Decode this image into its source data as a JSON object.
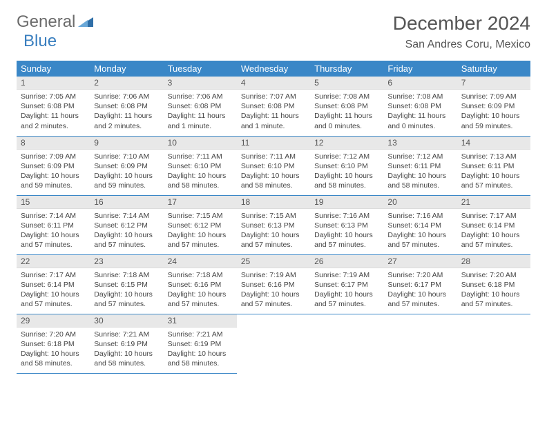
{
  "brand": {
    "name1": "General",
    "name2": "Blue",
    "brand_color": "#3a7fbf",
    "gray": "#6b6b6b"
  },
  "title": "December 2024",
  "location": "San Andres Coru, Mexico",
  "header_bg": "#3a87c7",
  "day_headers": [
    "Sunday",
    "Monday",
    "Tuesday",
    "Wednesday",
    "Thursday",
    "Friday",
    "Saturday"
  ],
  "days": [
    {
      "n": 1,
      "sunrise": "7:05 AM",
      "sunset": "6:08 PM",
      "daylight": "11 hours and 2 minutes."
    },
    {
      "n": 2,
      "sunrise": "7:06 AM",
      "sunset": "6:08 PM",
      "daylight": "11 hours and 2 minutes."
    },
    {
      "n": 3,
      "sunrise": "7:06 AM",
      "sunset": "6:08 PM",
      "daylight": "11 hours and 1 minute."
    },
    {
      "n": 4,
      "sunrise": "7:07 AM",
      "sunset": "6:08 PM",
      "daylight": "11 hours and 1 minute."
    },
    {
      "n": 5,
      "sunrise": "7:08 AM",
      "sunset": "6:08 PM",
      "daylight": "11 hours and 0 minutes."
    },
    {
      "n": 6,
      "sunrise": "7:08 AM",
      "sunset": "6:08 PM",
      "daylight": "11 hours and 0 minutes."
    },
    {
      "n": 7,
      "sunrise": "7:09 AM",
      "sunset": "6:09 PM",
      "daylight": "10 hours and 59 minutes."
    },
    {
      "n": 8,
      "sunrise": "7:09 AM",
      "sunset": "6:09 PM",
      "daylight": "10 hours and 59 minutes."
    },
    {
      "n": 9,
      "sunrise": "7:10 AM",
      "sunset": "6:09 PM",
      "daylight": "10 hours and 59 minutes."
    },
    {
      "n": 10,
      "sunrise": "7:11 AM",
      "sunset": "6:10 PM",
      "daylight": "10 hours and 58 minutes."
    },
    {
      "n": 11,
      "sunrise": "7:11 AM",
      "sunset": "6:10 PM",
      "daylight": "10 hours and 58 minutes."
    },
    {
      "n": 12,
      "sunrise": "7:12 AM",
      "sunset": "6:10 PM",
      "daylight": "10 hours and 58 minutes."
    },
    {
      "n": 13,
      "sunrise": "7:12 AM",
      "sunset": "6:11 PM",
      "daylight": "10 hours and 58 minutes."
    },
    {
      "n": 14,
      "sunrise": "7:13 AM",
      "sunset": "6:11 PM",
      "daylight": "10 hours and 57 minutes."
    },
    {
      "n": 15,
      "sunrise": "7:14 AM",
      "sunset": "6:11 PM",
      "daylight": "10 hours and 57 minutes."
    },
    {
      "n": 16,
      "sunrise": "7:14 AM",
      "sunset": "6:12 PM",
      "daylight": "10 hours and 57 minutes."
    },
    {
      "n": 17,
      "sunrise": "7:15 AM",
      "sunset": "6:12 PM",
      "daylight": "10 hours and 57 minutes."
    },
    {
      "n": 18,
      "sunrise": "7:15 AM",
      "sunset": "6:13 PM",
      "daylight": "10 hours and 57 minutes."
    },
    {
      "n": 19,
      "sunrise": "7:16 AM",
      "sunset": "6:13 PM",
      "daylight": "10 hours and 57 minutes."
    },
    {
      "n": 20,
      "sunrise": "7:16 AM",
      "sunset": "6:14 PM",
      "daylight": "10 hours and 57 minutes."
    },
    {
      "n": 21,
      "sunrise": "7:17 AM",
      "sunset": "6:14 PM",
      "daylight": "10 hours and 57 minutes."
    },
    {
      "n": 22,
      "sunrise": "7:17 AM",
      "sunset": "6:14 PM",
      "daylight": "10 hours and 57 minutes."
    },
    {
      "n": 23,
      "sunrise": "7:18 AM",
      "sunset": "6:15 PM",
      "daylight": "10 hours and 57 minutes."
    },
    {
      "n": 24,
      "sunrise": "7:18 AM",
      "sunset": "6:16 PM",
      "daylight": "10 hours and 57 minutes."
    },
    {
      "n": 25,
      "sunrise": "7:19 AM",
      "sunset": "6:16 PM",
      "daylight": "10 hours and 57 minutes."
    },
    {
      "n": 26,
      "sunrise": "7:19 AM",
      "sunset": "6:17 PM",
      "daylight": "10 hours and 57 minutes."
    },
    {
      "n": 27,
      "sunrise": "7:20 AM",
      "sunset": "6:17 PM",
      "daylight": "10 hours and 57 minutes."
    },
    {
      "n": 28,
      "sunrise": "7:20 AM",
      "sunset": "6:18 PM",
      "daylight": "10 hours and 57 minutes."
    },
    {
      "n": 29,
      "sunrise": "7:20 AM",
      "sunset": "6:18 PM",
      "daylight": "10 hours and 58 minutes."
    },
    {
      "n": 30,
      "sunrise": "7:21 AM",
      "sunset": "6:19 PM",
      "daylight": "10 hours and 58 minutes."
    },
    {
      "n": 31,
      "sunrise": "7:21 AM",
      "sunset": "6:19 PM",
      "daylight": "10 hours and 58 minutes."
    }
  ],
  "labels": {
    "sunrise": "Sunrise:",
    "sunset": "Sunset:",
    "daylight": "Daylight:"
  },
  "start_weekday": 0,
  "trailing_empty": 4
}
